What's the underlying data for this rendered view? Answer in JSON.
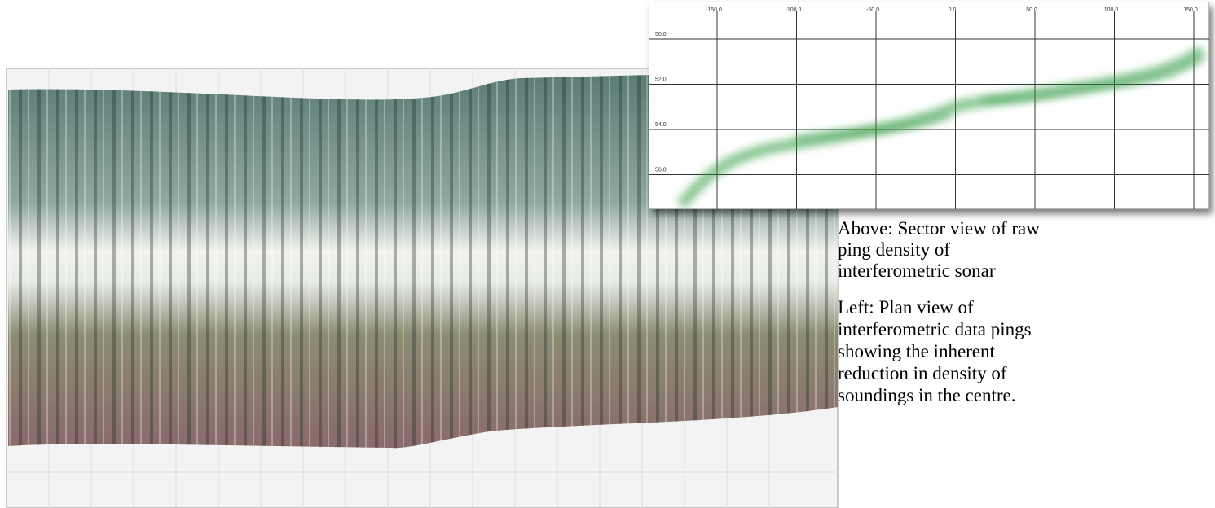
{
  "inset": {
    "x_labels": [
      "-150.0",
      "-100.0",
      "-50.0",
      "0.0",
      "50.0",
      "100.0",
      "150.0"
    ],
    "y_labels": [
      "50.0",
      "52.0",
      "54.0",
      "56.0"
    ]
  },
  "caption": {
    "above": [
      "Above: Sector view of raw",
      "ping density of",
      "interferometric sonar"
    ],
    "left": [
      "Left: Plan view of",
      "interferometric data pings",
      "showing the inherent",
      "reduction in density of",
      "soundings in the centre."
    ]
  }
}
